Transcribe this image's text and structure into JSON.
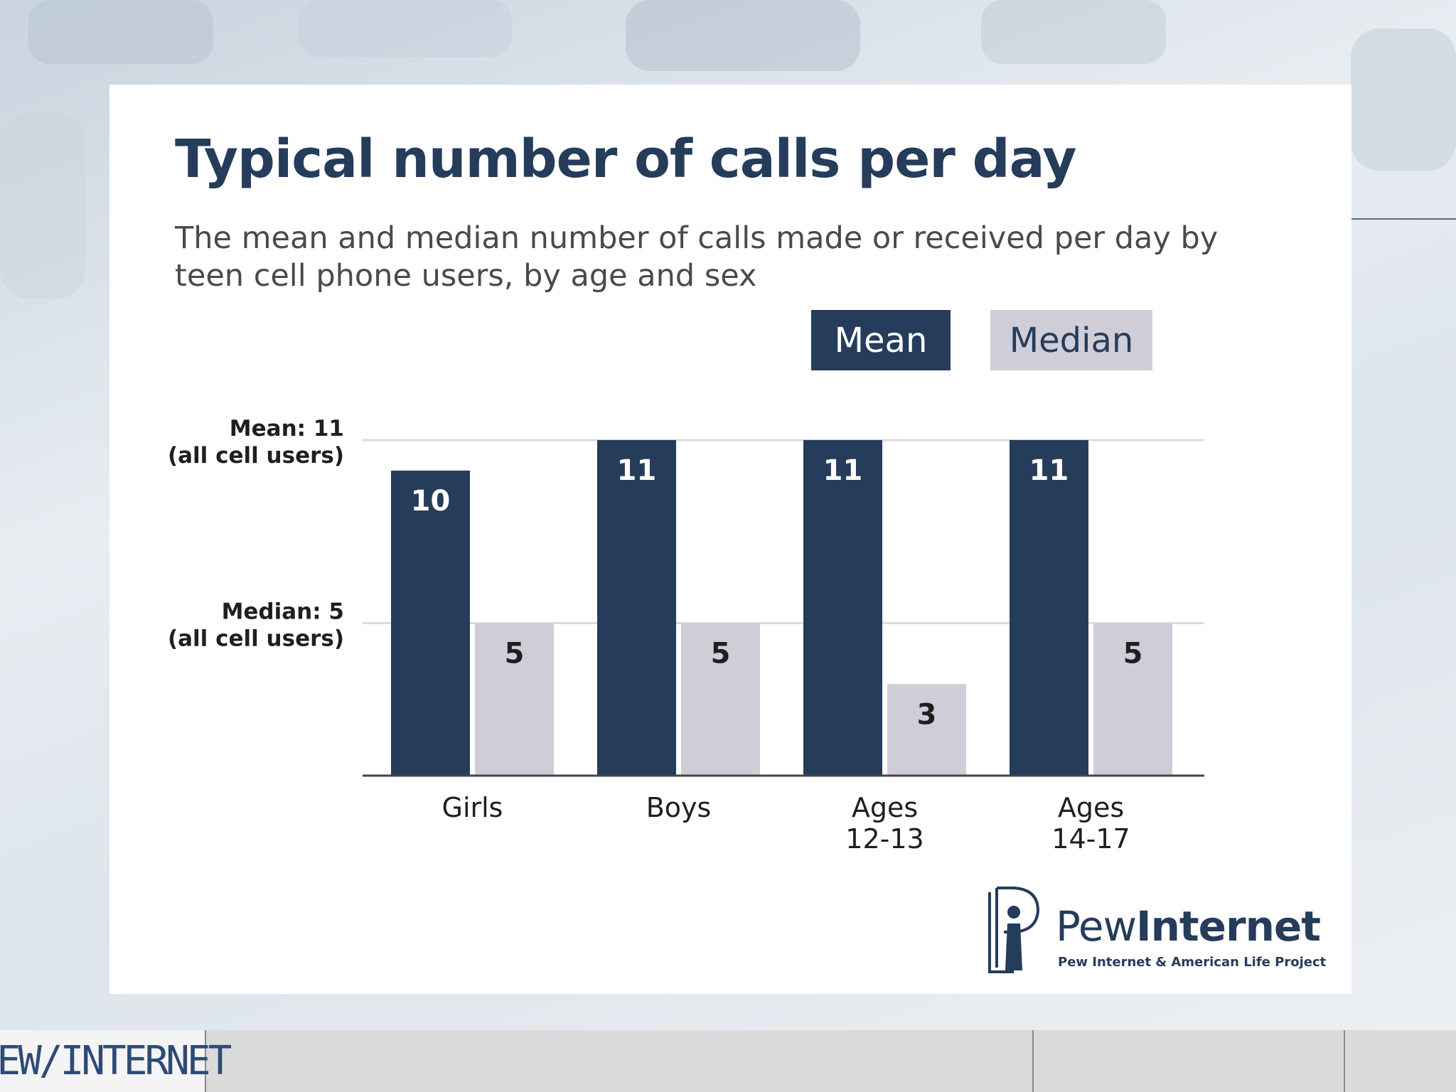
{
  "title": "Typical number of calls per day",
  "subtitle": "The mean and median number of calls made or received per day by teen cell phone users, by age and sex",
  "legend": {
    "mean": "Mean",
    "median": "Median"
  },
  "reference_lines": {
    "mean_line1": "Mean: 11",
    "mean_line2": "(all cell users)",
    "median_line1": "Median: 5",
    "median_line2": "(all cell users)"
  },
  "chart_data": {
    "type": "bar",
    "categories": [
      [
        "Girls"
      ],
      [
        "Boys"
      ],
      [
        "Ages",
        "12-13"
      ],
      [
        "Ages",
        "14-17"
      ]
    ],
    "series": [
      {
        "name": "Mean",
        "values": [
          10,
          11,
          11,
          11
        ],
        "color": "#253c5b"
      },
      {
        "name": "Median",
        "values": [
          5,
          5,
          3,
          5
        ],
        "color": "#cfcdd8"
      }
    ],
    "reference_values": [
      11,
      5
    ],
    "ylim": [
      0,
      11
    ],
    "grid": true
  },
  "logo": {
    "word_regular": "Pew",
    "word_bold": "Internet",
    "tagline": "Pew Internet & American Life Project"
  },
  "footer": {
    "brand": "PEW/INTERNET"
  },
  "colors": {
    "navy": "#253c5b",
    "lavender": "#cfcdd8",
    "gridline": "#dcdcdc"
  }
}
